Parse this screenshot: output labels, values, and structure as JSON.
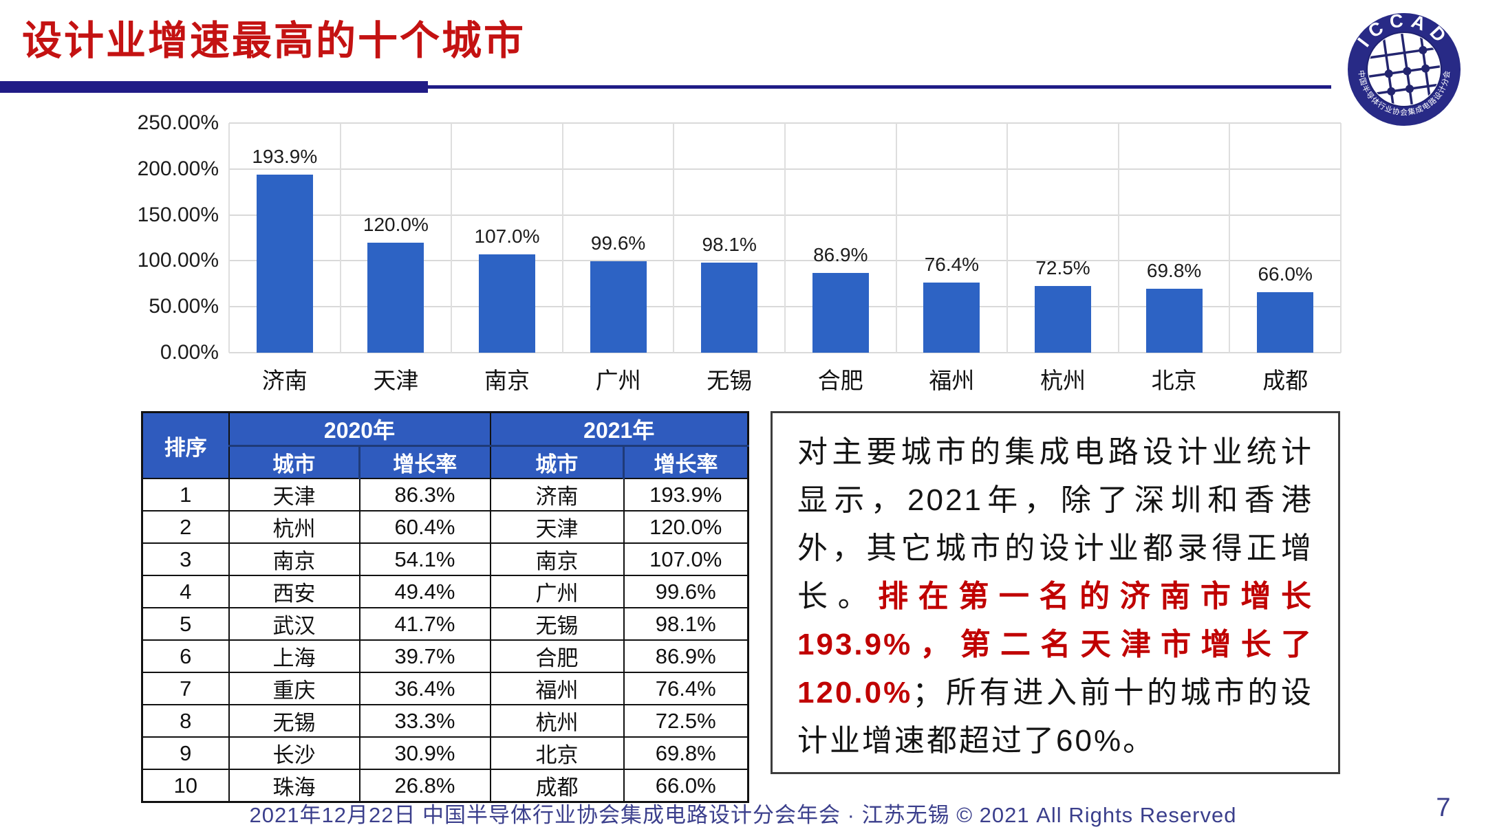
{
  "title": "设计业增速最高的十个城市",
  "colors": {
    "title_red": "#C41212",
    "accent_navy": "#201C86",
    "bar_blue": "#2D63C4",
    "table_header_blue": "#2F5BBE",
    "table_header_separator": "#1F3B78",
    "highlight_red": "#C00000",
    "footer_navy": "#3B3F8C",
    "grid_gray": "#D9D9D9"
  },
  "logo": {
    "arc_top": "ICCAD",
    "arc_bottom": "中国半导体行业协会集成电路设计分会"
  },
  "chart_data": {
    "type": "bar",
    "title": "",
    "xlabel": "",
    "ylabel": "",
    "categories": [
      "济南",
      "天津",
      "南京",
      "广州",
      "无锡",
      "合肥",
      "福州",
      "杭州",
      "北京",
      "成都"
    ],
    "values": [
      193.9,
      120.0,
      107.0,
      99.6,
      98.1,
      86.9,
      76.4,
      72.5,
      69.8,
      66.0
    ],
    "value_labels": [
      "193.9%",
      "120.0%",
      "107.0%",
      "99.6%",
      "98.1%",
      "86.9%",
      "76.4%",
      "72.5%",
      "69.8%",
      "66.0%"
    ],
    "y_ticks": [
      "250.00%",
      "200.00%",
      "150.00%",
      "100.00%",
      "50.00%",
      "0.00%"
    ],
    "ylim": [
      0,
      250
    ],
    "grid": true,
    "legend": false,
    "bar_color": "#2D63C4"
  },
  "table": {
    "rank_header": "排序",
    "groups": [
      {
        "label": "2020年",
        "columns": [
          "城市",
          "增长率"
        ]
      },
      {
        "label": "2021年",
        "columns": [
          "城市",
          "增长率"
        ]
      }
    ],
    "rows": [
      {
        "rank": "1",
        "y2020": [
          "天津",
          "86.3%"
        ],
        "y2021": [
          "济南",
          "193.9%"
        ]
      },
      {
        "rank": "2",
        "y2020": [
          "杭州",
          "60.4%"
        ],
        "y2021": [
          "天津",
          "120.0%"
        ]
      },
      {
        "rank": "3",
        "y2020": [
          "南京",
          "54.1%"
        ],
        "y2021": [
          "南京",
          "107.0%"
        ]
      },
      {
        "rank": "4",
        "y2020": [
          "西安",
          "49.4%"
        ],
        "y2021": [
          "广州",
          "99.6%"
        ]
      },
      {
        "rank": "5",
        "y2020": [
          "武汉",
          "41.7%"
        ],
        "y2021": [
          "无锡",
          "98.1%"
        ]
      },
      {
        "rank": "6",
        "y2020": [
          "上海",
          "39.7%"
        ],
        "y2021": [
          "合肥",
          "86.9%"
        ]
      },
      {
        "rank": "7",
        "y2020": [
          "重庆",
          "36.4%"
        ],
        "y2021": [
          "福州",
          "76.4%"
        ]
      },
      {
        "rank": "8",
        "y2020": [
          "无锡",
          "33.3%"
        ],
        "y2021": [
          "杭州",
          "72.5%"
        ]
      },
      {
        "rank": "9",
        "y2020": [
          "长沙",
          "30.9%"
        ],
        "y2021": [
          "北京",
          "69.8%"
        ]
      },
      {
        "rank": "10",
        "y2020": [
          "珠海",
          "26.8%"
        ],
        "y2021": [
          "成都",
          "66.0%"
        ]
      }
    ]
  },
  "textbox": {
    "part1": "对主要城市的集成电路设计业统计显示，2021年，除了深圳和香港外，其它城市的设计业都录得正增长。",
    "part2": "排在第一名的济南市增长193.9%，第二名天津市增长了120.0%",
    "part3": "；所有进入前十的城市的设计业增速都超过了60%。"
  },
  "footer": {
    "text": "2021年12月22日 中国半导体行业协会集成电路设计分会年会 · 江苏无锡 © 2021 All Rights Reserved",
    "page": "7"
  }
}
